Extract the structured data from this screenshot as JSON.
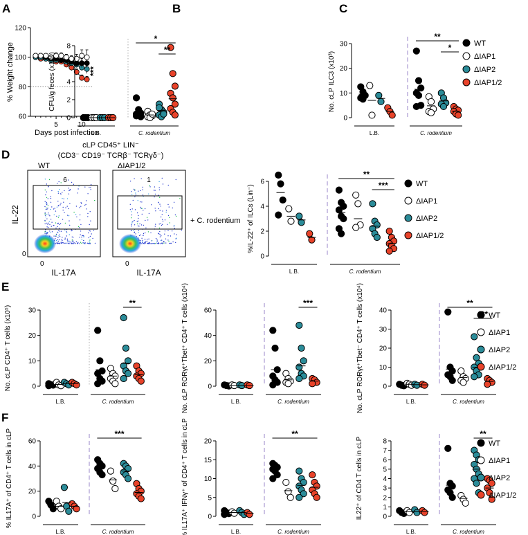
{
  "colors": {
    "WT": "#000000",
    "dIAP1": "#ffffff",
    "dIAP2": "#2b8c99",
    "dIAP12": "#e8432a",
    "divider": "#9a86c8"
  },
  "legend": {
    "labels": [
      "WT",
      "ΔIAP1",
      "ΔIAP2",
      "ΔIAP1/2"
    ],
    "keys": [
      "WT",
      "dIAP1",
      "dIAP2",
      "dIAP12"
    ]
  },
  "flow": {
    "panel_label": "D",
    "title_line1": "cLP CD45⁺ LIN⁻",
    "title_line2": "(CD3⁻ CD19⁻ TCRβ⁻ TCRγδ⁻)",
    "wt_label": "WT",
    "ko_label": "ΔIAP1/2",
    "wt_gate_value": "6",
    "ko_gate_value": "1",
    "y_axis_label": "IL-22",
    "x_axis_label": "IL-17A",
    "zero_tick": "0",
    "condition_label": "+ C. rodentium"
  },
  "chart_data": [
    {
      "id": "A",
      "type": "line",
      "panel_label": "A",
      "xlabel": "Days post infection",
      "ylabel": "% Weight change",
      "xlim": [
        0,
        12
      ],
      "ylim": [
        60,
        120
      ],
      "xticks": [
        5,
        10
      ],
      "yticks": [
        60,
        80,
        100,
        120
      ],
      "reference_line": 80,
      "significance": "***",
      "x": [
        1,
        2,
        3,
        4,
        5,
        6,
        7,
        8,
        9,
        10,
        11
      ],
      "series": [
        {
          "name": "WT",
          "key": "WT",
          "values": [
            101,
            101,
            100,
            99,
            99,
            98,
            98,
            97,
            96,
            96,
            96
          ],
          "errors": [
            1,
            1,
            1,
            1,
            1,
            1,
            2,
            2,
            2,
            3,
            3
          ]
        },
        {
          "name": "ΔIAP1",
          "key": "dIAP1",
          "values": [
            101,
            101,
            101,
            100,
            101,
            101,
            100,
            99,
            99,
            101,
            100
          ],
          "errors": [
            1,
            1,
            1,
            1,
            2,
            2,
            2,
            2,
            3,
            4,
            5
          ]
        },
        {
          "name": "ΔIAP2",
          "key": "dIAP2",
          "values": [
            100,
            100,
            99,
            98,
            98,
            98,
            97,
            96,
            95,
            93,
            92
          ],
          "errors": [
            1,
            1,
            1,
            1,
            1,
            1,
            1,
            2,
            2,
            2,
            3
          ]
        },
        {
          "name": "ΔIAP1/2",
          "key": "dIAP12",
          "values": [
            100,
            99,
            99,
            98,
            97,
            97,
            95,
            93,
            90,
            86,
            85
          ],
          "errors": [
            1,
            1,
            1,
            1,
            1,
            1,
            1,
            2,
            2,
            2,
            2
          ]
        }
      ]
    },
    {
      "id": "B",
      "type": "scatter",
      "panel_label": "B",
      "ylabel": "CFU/g feces (x10⁸)",
      "ylim": [
        0,
        8
      ],
      "yticks": [
        0,
        2,
        4,
        6,
        8
      ],
      "groups": [
        "L.B.",
        "C. rodentium"
      ],
      "divider_style": "dotted",
      "series": [
        {
          "name": "WT",
          "key": "WT",
          "lb": [
            0,
            0,
            0,
            0
          ],
          "cr": [
            2.2,
            0.9,
            0.5,
            0.4,
            0.3,
            0.1,
            0.2,
            0.6
          ]
        },
        {
          "name": "ΔIAP1",
          "key": "dIAP1",
          "lb": [
            0,
            0,
            0
          ],
          "cr": [
            0.7,
            0.3,
            0.2,
            0.1,
            0,
            0.4
          ]
        },
        {
          "name": "ΔIAP2",
          "key": "dIAP2",
          "lb": [
            0,
            0,
            0
          ],
          "cr": [
            1.5,
            0.9,
            0.6,
            0.3,
            0.1,
            0.4,
            1.1
          ]
        },
        {
          "name": "ΔIAP1/2",
          "key": "dIAP12",
          "lb": [
            0,
            0,
            0
          ],
          "cr": [
            7.8,
            4.9,
            3.5,
            2.7,
            2.2,
            1.5,
            1.0,
            0.6,
            0.3
          ]
        }
      ],
      "means": {
        "lb": [
          0,
          0,
          0,
          0
        ],
        "cr": [
          0.6,
          0.3,
          0.8,
          2.1
        ]
      },
      "significance": [
        {
          "label": "*",
          "from": 0,
          "to": 3
        },
        {
          "label": "**",
          "from": 2,
          "to": 3
        }
      ]
    },
    {
      "id": "C",
      "type": "scatter",
      "panel_label": "C",
      "ylabel": "No. cLP ILC3 (x10³)",
      "ylim": [
        0,
        30
      ],
      "yticks": [
        0,
        10,
        20,
        30
      ],
      "groups": [
        "L.B.",
        "C. rodentium"
      ],
      "divider_style": "dashed",
      "series": [
        {
          "name": "WT",
          "key": "WT",
          "lb": [
            12.5,
            10.5,
            9.0,
            8.0,
            7.5
          ],
          "cr": [
            27,
            15,
            12,
            10,
            9,
            5,
            4.5
          ]
        },
        {
          "name": "ΔIAP1",
          "key": "dIAP1",
          "lb": [
            13.0,
            1.0
          ],
          "cr": [
            8.5,
            6.5,
            3.5,
            2.5,
            2.0
          ]
        },
        {
          "name": "ΔIAP2",
          "key": "dIAP2",
          "lb": [
            9.0,
            6.5
          ],
          "cr": [
            10,
            8,
            6,
            5.5,
            4.5
          ]
        },
        {
          "name": "ΔIAP1/2",
          "key": "dIAP12",
          "lb": [
            4.0,
            2.5,
            1.0
          ],
          "cr": [
            4.5,
            3.5,
            3.0,
            2.5,
            1.5,
            1.0
          ]
        }
      ],
      "means": {
        "lb": [
          9.5,
          7.0,
          7.8,
          2.5
        ],
        "cr": [
          11.5,
          4.8,
          6.8,
          2.6
        ]
      },
      "significance": [
        {
          "label": "**",
          "from": 0,
          "to": 3
        },
        {
          "label": "*",
          "from": 2,
          "to": 3
        }
      ]
    },
    {
      "id": "D",
      "type": "scatter",
      "panel_label": "",
      "ylabel": "%IL-22⁺ of ILCs (Lin⁻)",
      "ylim": [
        0,
        6
      ],
      "yticks": [
        0,
        2,
        4,
        6
      ],
      "groups": [
        "L.B.",
        "C. rodentium"
      ],
      "divider_style": "dashed",
      "series": [
        {
          "name": "WT",
          "key": "WT",
          "lb": [
            6.5,
            5.8,
            4.5,
            3.3
          ],
          "cr": [
            5.3,
            4.3,
            4.0,
            3.7,
            3.2,
            3.0,
            2.2,
            1.8
          ]
        },
        {
          "name": "ΔIAP1",
          "key": "dIAP1",
          "lb": [
            3.8,
            2.8
          ],
          "cr": [
            4.9,
            4.2,
            2.5,
            2.3
          ]
        },
        {
          "name": "ΔIAP2",
          "key": "dIAP2",
          "lb": [
            3.2,
            2.7
          ],
          "cr": [
            4.2,
            2.8,
            2.5,
            2.2,
            1.8,
            1.5
          ]
        },
        {
          "name": "ΔIAP1/2",
          "key": "dIAP12",
          "lb": [
            1.8,
            1.3
          ],
          "cr": [
            2.0,
            1.5,
            1.2,
            1.0,
            0.8,
            0.6,
            0.4
          ]
        }
      ],
      "means": {
        "lb": [
          5.1,
          3.2,
          2.9,
          1.5
        ],
        "cr": [
          3.5,
          3.0,
          2.4,
          1.0
        ]
      },
      "significance": [
        {
          "label": "**",
          "from": 0,
          "to": 3
        },
        {
          "label": "***",
          "from": 2,
          "to": 3
        }
      ]
    },
    {
      "id": "E1",
      "type": "scatter",
      "panel_label": "E",
      "ylabel": "No. cLP CD4⁺ T cells (x10⁵)",
      "ylim": [
        0,
        30
      ],
      "yticks": [
        0,
        10,
        20,
        30
      ],
      "groups": [
        "L.B.",
        "C. rodentium"
      ],
      "divider_style": "dotted",
      "series": [
        {
          "name": "WT",
          "key": "WT",
          "lb": [
            1.0,
            0.6,
            0.4,
            0.2
          ],
          "cr": [
            22,
            10,
            6,
            5,
            3,
            2,
            1
          ]
        },
        {
          "name": "ΔIAP1",
          "key": "dIAP1",
          "lb": [
            1.5,
            0.5,
            0.2
          ],
          "cr": [
            7,
            5,
            4,
            3,
            2,
            1
          ]
        },
        {
          "name": "ΔIAP2",
          "key": "dIAP2",
          "lb": [
            1.5,
            1.0,
            0.5
          ],
          "cr": [
            27,
            15,
            10,
            8,
            6,
            5,
            3
          ]
        },
        {
          "name": "ΔIAP1/2",
          "key": "dIAP12",
          "lb": [
            1.5,
            1.0,
            0.5
          ],
          "cr": [
            8,
            6,
            5,
            4,
            3,
            2
          ]
        }
      ],
      "means": {
        "lb": [
          0.5,
          0.7,
          1.0,
          1.0
        ],
        "cr": [
          6.5,
          4.0,
          9.0,
          4.5
        ]
      },
      "significance": [
        {
          "label": "**",
          "from": 2,
          "to": 3
        }
      ]
    },
    {
      "id": "E2",
      "type": "scatter",
      "panel_label": "",
      "ylabel": "No. cLP RORγt⁺Tbet⁺ CD4⁺ T cells (x10⁴)",
      "ylim": [
        0,
        60
      ],
      "yticks": [
        0,
        20,
        40,
        60
      ],
      "groups": [
        "L.B.",
        "C. rodentium"
      ],
      "divider_style": "dashed",
      "series": [
        {
          "name": "WT",
          "key": "WT",
          "lb": [
            1.0,
            0.5,
            0.2
          ],
          "cr": [
            44,
            30,
            13,
            8,
            5,
            3,
            1
          ]
        },
        {
          "name": "ΔIAP1",
          "key": "dIAP1",
          "lb": [
            1.0,
            0.5
          ],
          "cr": [
            10,
            6,
            4,
            3,
            2
          ]
        },
        {
          "name": "ΔIAP2",
          "key": "dIAP2",
          "lb": [
            1.0,
            0.5
          ],
          "cr": [
            48,
            30,
            20,
            15,
            10,
            8,
            6
          ]
        },
        {
          "name": "ΔIAP1/2",
          "key": "dIAP12",
          "lb": [
            1.0,
            0.5
          ],
          "cr": [
            6,
            5,
            3,
            2
          ]
        }
      ],
      "means": {
        "lb": [
          0.6,
          0.6,
          0.6,
          0.6
        ],
        "cr": [
          13,
          5,
          16,
          4
        ]
      },
      "significance": [
        {
          "label": "***",
          "from": 2,
          "to": 3
        }
      ]
    },
    {
      "id": "E3",
      "type": "scatter",
      "panel_label": "",
      "ylabel": "No. cLP RORγt⁺Tbet⁻ CD4⁺ T cells (x10⁴)",
      "ylim": [
        0,
        40
      ],
      "yticks": [
        0,
        10,
        20,
        30,
        40
      ],
      "groups": [
        "L.B.",
        "C. rodentium"
      ],
      "divider_style": "dashed",
      "series": [
        {
          "name": "WT",
          "key": "WT",
          "lb": [
            1.0,
            0.5,
            0.2
          ],
          "cr": [
            39,
            10,
            8,
            6,
            5,
            3
          ]
        },
        {
          "name": "ΔIAP1",
          "key": "dIAP1",
          "lb": [
            1.5,
            1.0,
            0.5
          ],
          "cr": [
            8,
            5,
            4,
            3,
            2
          ]
        },
        {
          "name": "ΔIAP2",
          "key": "dIAP2",
          "lb": [
            1.0,
            0.5
          ],
          "cr": [
            26,
            15,
            12,
            10,
            8,
            6,
            5
          ]
        },
        {
          "name": "ΔIAP1/2",
          "key": "dIAP12",
          "lb": [
            1.0,
            0.5
          ],
          "cr": [
            4,
            3,
            2,
            1
          ]
        }
      ],
      "means": {
        "lb": [
          0.6,
          1.0,
          0.8,
          0.7
        ],
        "cr": [
          9,
          4.5,
          10,
          2.5
        ]
      },
      "significance": [
        {
          "label": "**",
          "from": 0,
          "to": 3
        },
        {
          "label": "***",
          "from": 2,
          "to": 3
        }
      ]
    },
    {
      "id": "F1",
      "type": "scatter",
      "panel_label": "F",
      "ylabel": "% IL17A⁺ of CD4⁺ T cells in cLP",
      "ylim": [
        0,
        60
      ],
      "yticks": [
        0,
        20,
        40,
        60
      ],
      "groups": [
        "L.B.",
        "C. rodentium"
      ],
      "divider_style": "dashed",
      "series": [
        {
          "name": "WT",
          "key": "WT",
          "lb": [
            12,
            9,
            6
          ],
          "cr": [
            45,
            42,
            40,
            38,
            35,
            33
          ]
        },
        {
          "name": "ΔIAP1",
          "key": "dIAP1",
          "lb": [
            12,
            8,
            6
          ],
          "cr": [
            36,
            28,
            22
          ]
        },
        {
          "name": "ΔIAP2",
          "key": "dIAP2",
          "lb": [
            23,
            8,
            4
          ],
          "cr": [
            42,
            40,
            38,
            35,
            33,
            30
          ]
        },
        {
          "name": "ΔIAP1/2",
          "key": "dIAP12",
          "lb": [
            10,
            8,
            6
          ],
          "cr": [
            26,
            22,
            20,
            18,
            16,
            14
          ]
        }
      ],
      "means": {
        "lb": [
          9,
          8,
          11,
          8
        ],
        "cr": [
          39,
          29,
          36,
          19
        ]
      },
      "significance": [
        {
          "label": "***",
          "from": 0,
          "to": 3
        }
      ]
    },
    {
      "id": "F2",
      "type": "scatter",
      "panel_label": "",
      "ylabel": "% IL17A⁺ IFNγ⁺ of CD4⁺ T cells in cLP",
      "ylim": [
        0,
        20
      ],
      "yticks": [
        0,
        5,
        10,
        15,
        20
      ],
      "groups": [
        "L.B.",
        "C. rodentium"
      ],
      "divider_style": "dashed",
      "series": [
        {
          "name": "WT",
          "key": "WT",
          "lb": [
            1.5,
            1.0,
            0.7,
            0.5
          ],
          "cr": [
            14,
            13.5,
            13,
            12.5,
            12,
            11,
            10
          ]
        },
        {
          "name": "ΔIAP1",
          "key": "dIAP1",
          "lb": [
            1.2,
            0.8
          ],
          "cr": [
            9,
            6.5,
            5
          ]
        },
        {
          "name": "ΔIAP2",
          "key": "dIAP2",
          "lb": [
            1.5,
            1.0,
            0.5
          ],
          "cr": [
            12,
            10,
            9,
            8,
            7,
            6,
            5
          ]
        },
        {
          "name": "ΔIAP1/2",
          "key": "dIAP12",
          "lb": [
            1.0,
            0.5
          ],
          "cr": [
            11,
            9,
            8,
            7,
            6,
            5
          ]
        }
      ],
      "means": {
        "lb": [
          1.0,
          1.0,
          1.0,
          0.8
        ],
        "cr": [
          12.5,
          6.8,
          8.2,
          7.7
        ]
      },
      "significance": [
        {
          "label": "**",
          "from": 0,
          "to": 3
        }
      ]
    },
    {
      "id": "F3",
      "type": "scatter",
      "panel_label": "",
      "ylabel": "IL22⁺ of CD4 T cells in cLP",
      "ylim": [
        0,
        8
      ],
      "yticks": [
        0,
        1,
        2,
        3,
        4,
        5,
        6,
        7,
        8
      ],
      "groups": [
        "L.B.",
        "C. rodentium"
      ],
      "divider_style": "dashed",
      "series": [
        {
          "name": "WT",
          "key": "WT",
          "lb": [
            0.6,
            0.4,
            0.3
          ],
          "cr": [
            7.2,
            3.5,
            3.2,
            2.8,
            2.5,
            2.0
          ]
        },
        {
          "name": "ΔIAP1",
          "key": "dIAP1",
          "lb": [
            0.6,
            0.4
          ],
          "cr": [
            2.2,
            1.8,
            1.4
          ]
        },
        {
          "name": "ΔIAP2",
          "key": "dIAP2",
          "lb": [
            0.7,
            0.4
          ],
          "cr": [
            7.0,
            6.5,
            6.0,
            5.5,
            5.0,
            4.5,
            4.0,
            3.5,
            2.5
          ]
        },
        {
          "name": "ΔIAP1/2",
          "key": "dIAP12",
          "lb": [
            0.6,
            0.4
          ],
          "cr": [
            4.0,
            3.8,
            3.5,
            3.0,
            2.5,
            1.8
          ]
        }
      ],
      "means": {
        "lb": [
          0.5,
          0.5,
          0.5,
          0.5
        ],
        "cr": [
          3.3,
          1.9,
          5.0,
          3.0
        ]
      },
      "significance": [
        {
          "label": "**",
          "from": 2,
          "to": 3
        }
      ]
    }
  ]
}
